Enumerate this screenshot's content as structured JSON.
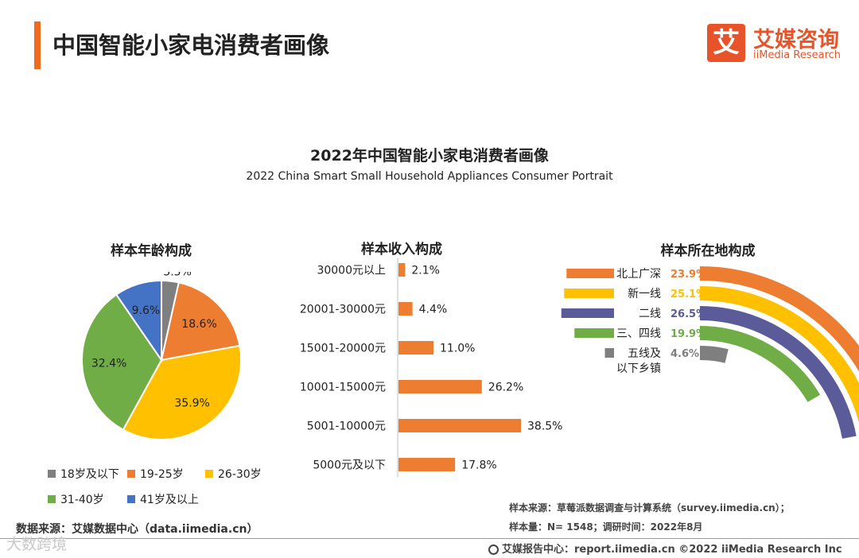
{
  "header": {
    "title": "中国智能小家电消费者画像",
    "logo_mark": "艾",
    "logo_cn": "艾媒咨询",
    "logo_en": "iiMedia Research"
  },
  "colors": {
    "accent": "#ef6c1f",
    "gray": "#7f7f7f",
    "orange": "#ed7d31",
    "yellow": "#ffc000",
    "green": "#70ad47",
    "blue": "#4472c4",
    "purple": "#5b5b9a"
  },
  "chart_data": [
    {
      "type": "pie",
      "title": "样本年龄构成",
      "main_title": "2022年中国智能小家电消费者画像",
      "main_subtitle": "2022 China Smart Small Household Appliances Consumer Portrait",
      "categories": [
        "18岁及以下",
        "19-25岁",
        "26-30岁",
        "31-40岁",
        "41岁及以上"
      ],
      "values": [
        3.5,
        18.6,
        35.9,
        32.4,
        9.6
      ],
      "labels": [
        "3.5%",
        "18.6%",
        "35.9%",
        "32.4%",
        "9.6%"
      ],
      "colors": [
        "#7f7f7f",
        "#ed7d31",
        "#ffc000",
        "#70ad47",
        "#4472c4"
      ]
    },
    {
      "type": "bar",
      "orientation": "horizontal",
      "title": "样本收入构成",
      "categories": [
        "30000元以上",
        "20001-30000元",
        "15001-20000元",
        "10001-15000元",
        "5001-10000元",
        "5000元及以下"
      ],
      "values": [
        2.1,
        4.4,
        11.0,
        26.2,
        38.5,
        17.8
      ],
      "labels": [
        "2.1%",
        "4.4%",
        "11.0%",
        "26.2%",
        "38.5%",
        "17.8%"
      ],
      "xlim": [
        0,
        40
      ],
      "color": "#ed7d31"
    },
    {
      "type": "radial-bar",
      "title": "样本所在地构成",
      "categories": [
        "北上广深",
        "新一线",
        "二线",
        "三、四线",
        "五线及以下乡镇"
      ],
      "category_lines": [
        [
          "北上广深"
        ],
        [
          "新一线"
        ],
        [
          "二线"
        ],
        [
          "三、四线"
        ],
        [
          "五线及",
          "以下乡镇"
        ]
      ],
      "values": [
        23.9,
        25.1,
        26.5,
        19.9,
        4.6
      ],
      "labels": [
        "23.9%",
        "25.1%",
        "26.5%",
        "19.9%",
        "4.6%"
      ],
      "colors": [
        "#ed7d31",
        "#ffc000",
        "#5b5b9a",
        "#70ad47",
        "#7f7f7f"
      ],
      "max": 30
    }
  ],
  "notes": {
    "source": "样本来源：草莓派数据调查与计算系统（survey.iimedia.cn）；",
    "sample": "样本量：N= 1548；调研时间：2022年8月",
    "data_source": "数据来源：艾媒数据中心（data.iimedia.cn）"
  },
  "footer": {
    "watermark": "大数跨境",
    "text": "艾媒报告中心：report.iimedia.cn    ©2022  iiMedia Research  Inc"
  }
}
